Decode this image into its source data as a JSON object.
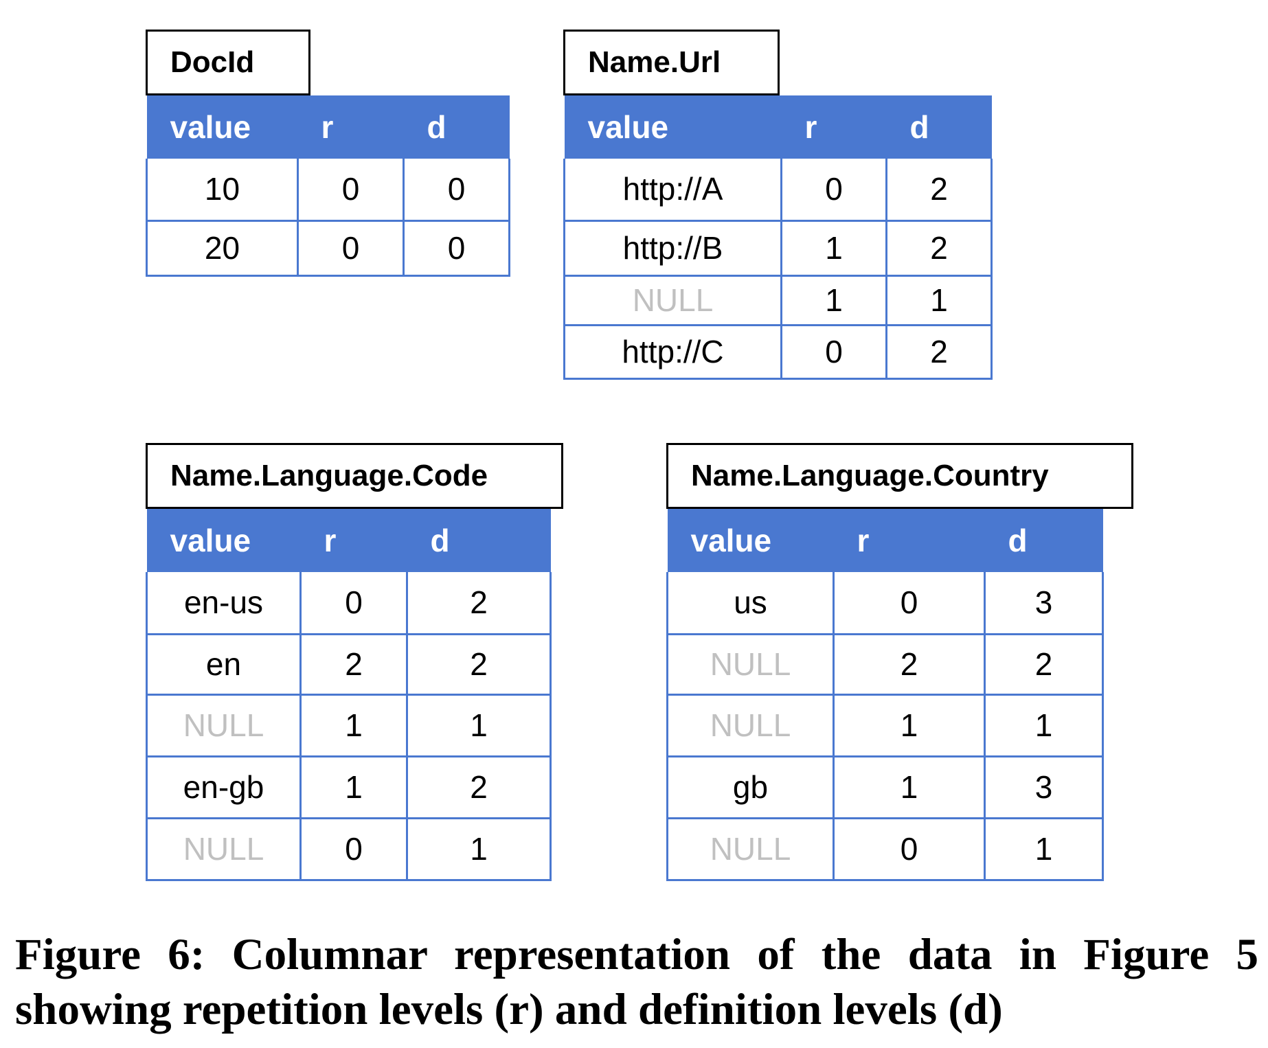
{
  "tables": [
    {
      "title": "DocId",
      "headers": [
        "value",
        "r",
        "d"
      ],
      "rows": [
        [
          "10",
          "0",
          "0"
        ],
        [
          "20",
          "0",
          "0"
        ]
      ]
    },
    {
      "title": "Name.Url",
      "headers": [
        "value",
        "r",
        "d"
      ],
      "rows": [
        [
          "http://A",
          "0",
          "2"
        ],
        [
          "http://B",
          "1",
          "2"
        ],
        [
          "NULL",
          "1",
          "1"
        ],
        [
          "http://C",
          "0",
          "2"
        ]
      ]
    },
    {
      "title": "Name.Language.Code",
      "headers": [
        "value",
        "r",
        "d"
      ],
      "rows": [
        [
          "en-us",
          "0",
          "2"
        ],
        [
          "en",
          "2",
          "2"
        ],
        [
          "NULL",
          "1",
          "1"
        ],
        [
          "en-gb",
          "1",
          "2"
        ],
        [
          "NULL",
          "0",
          "1"
        ]
      ]
    },
    {
      "title": "Name.Language.Country",
      "headers": [
        "value",
        "r",
        "d"
      ],
      "rows": [
        [
          "us",
          "0",
          "3"
        ],
        [
          "NULL",
          "2",
          "2"
        ],
        [
          "NULL",
          "1",
          "1"
        ],
        [
          "gb",
          "1",
          "3"
        ],
        [
          "NULL",
          "0",
          "1"
        ]
      ]
    }
  ],
  "caption": "Figure 6: Columnar representation of the data in Figure 5 showing repetition levels (r) and definition levels (d)",
  "colors": {
    "header_fill": "#4a78d0",
    "border": "#4a78d0",
    "null_text": "#c0c0c0"
  }
}
